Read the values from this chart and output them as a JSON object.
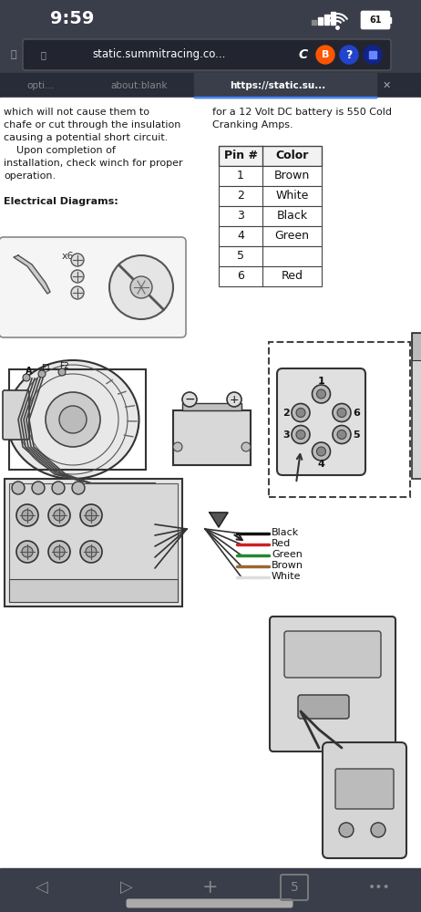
{
  "bg_dark": "#3a3d4a",
  "bg_white": "#ffffff",
  "text_white": "#ffffff",
  "text_gray": "#aaaaaa",
  "text_dark": "#1a1a1a",
  "status_time": "9:59",
  "battery_pct": "61",
  "url_text": "static.summitracing.co...",
  "tab1": "opti...",
  "tab2": "about:blank",
  "tab3": "https://static.su...",
  "left_text": [
    "which will not cause them to",
    "chafe or cut through the insulation",
    "causing a potential short circuit.",
    "    Upon completion of",
    "installation, check winch for proper",
    "operation.",
    "",
    "Electrical Diagrams:"
  ],
  "right_text_1": "for a 12 Volt DC battery is 550 Cold",
  "right_text_2": "Cranking Amps.",
  "pin_headers": [
    "Pin #",
    "Color"
  ],
  "pin_rows": [
    [
      "1",
      "Brown"
    ],
    [
      "2",
      "White"
    ],
    [
      "3",
      "Black"
    ],
    [
      "4",
      "Green"
    ],
    [
      "5",
      ""
    ],
    [
      "6",
      "Red"
    ]
  ],
  "wire_labels": [
    "Black",
    "Red",
    "Green",
    "Brown",
    "White"
  ],
  "wire_colors": [
    "#111111",
    "#cc2222",
    "#228833",
    "#996633",
    "#dddddd"
  ]
}
